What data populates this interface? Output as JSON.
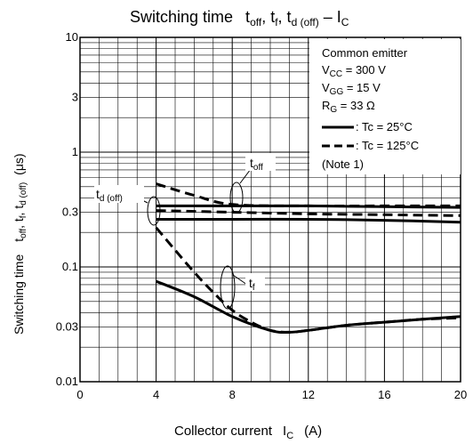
{
  "chart_data": {
    "type": "line",
    "title": {
      "prefix": "Switching time",
      "t": "t",
      "off": "off",
      "sep1": ", t",
      "f": "f",
      "sep2": ", t",
      "d": "d (off)",
      "dash": " – I",
      "C": "C"
    },
    "xlabel": {
      "text": "Collector current",
      "sym": "I",
      "sub": "C",
      "unit": "(A)"
    },
    "ylabel": {
      "text": "Switching time",
      "t": "t",
      "off": "off",
      "sep1": ", t",
      "f": "f",
      "sep2": ", t",
      "d": "d (off)",
      "unit": "(μs)"
    },
    "x_ticks": [
      "0",
      "4",
      "8",
      "12",
      "16",
      "20"
    ],
    "x_tick_values": [
      0,
      4,
      8,
      12,
      16,
      20
    ],
    "y_ticks": [
      "0.01",
      "0.03",
      "0.1",
      "0.3",
      "1",
      "3",
      "10"
    ],
    "y_tick_values": [
      0.01,
      0.03,
      0.1,
      0.3,
      1,
      3,
      10
    ],
    "xlim": [
      0,
      20
    ],
    "ylim": [
      0.01,
      10
    ],
    "y_scale": "log",
    "grid": true,
    "conditions": {
      "lines": [
        {
          "text": "Common emitter"
        },
        {
          "base": "V",
          "sub": "CC",
          "rest": " = 300 V"
        },
        {
          "base": "V",
          "sub": "GG",
          "rest": " = 15 V"
        },
        {
          "base": "R",
          "sub": "G",
          "rest": " = 33 Ω"
        }
      ],
      "note": "(Note 1)"
    },
    "legend": [
      {
        "style": "solid",
        "label": ": Tc = 25°C"
      },
      {
        "style": "dashed",
        "label": ": Tc = 125°C"
      }
    ],
    "annotations": [
      {
        "t": "t",
        "sub": "off"
      },
      {
        "t": "t",
        "sub": "d (off)"
      },
      {
        "t": "t",
        "sub": "f"
      }
    ],
    "series": [
      {
        "id": "toff-25",
        "style": "solid",
        "x": [
          4,
          8,
          12,
          16,
          20
        ],
        "y": [
          0.34,
          0.34,
          0.34,
          0.335,
          0.33
        ]
      },
      {
        "id": "toff-125",
        "style": "dashed",
        "x": [
          4,
          6,
          8,
          12,
          16,
          20
        ],
        "y": [
          0.53,
          0.42,
          0.35,
          0.34,
          0.34,
          0.34
        ]
      },
      {
        "id": "tdoff-25",
        "style": "solid",
        "x": [
          4,
          8,
          12,
          16,
          20
        ],
        "y": [
          0.26,
          0.26,
          0.26,
          0.255,
          0.245
        ]
      },
      {
        "id": "tdoff-125",
        "style": "dashed",
        "x": [
          4,
          8,
          12,
          16,
          20
        ],
        "y": [
          0.31,
          0.3,
          0.29,
          0.285,
          0.28
        ]
      },
      {
        "id": "tf-25",
        "style": "solid",
        "x": [
          4,
          6,
          8,
          10,
          11,
          12,
          14,
          16,
          18,
          20
        ],
        "y": [
          0.075,
          0.055,
          0.037,
          0.028,
          0.027,
          0.028,
          0.031,
          0.033,
          0.035,
          0.037
        ]
      },
      {
        "id": "tf-125",
        "style": "dashed",
        "x": [
          4,
          5,
          6,
          7,
          8,
          9,
          10,
          11,
          12,
          14,
          16,
          18,
          20
        ],
        "y": [
          0.22,
          0.14,
          0.09,
          0.06,
          0.042,
          0.033,
          0.028,
          0.027,
          0.028,
          0.031,
          0.033,
          0.035,
          0.036
        ]
      }
    ]
  }
}
